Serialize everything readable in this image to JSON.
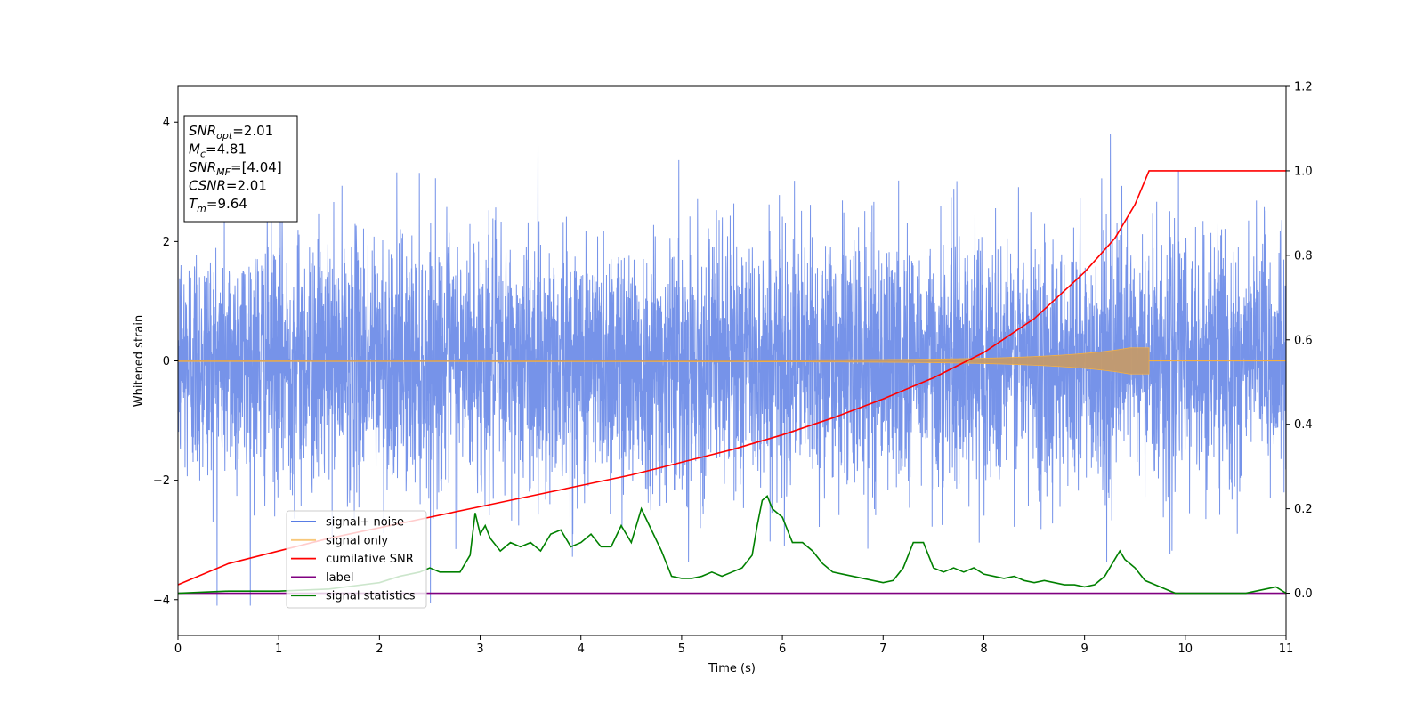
{
  "chart_data": {
    "type": "line",
    "xlabel": "Time (s)",
    "ylabel": "Whitened strain",
    "xlim": [
      0,
      11
    ],
    "ylim": [
      -4.6,
      4.6
    ],
    "y2lim": [
      -0.1,
      1.2
    ],
    "x_ticks": [
      "0",
      "1",
      "2",
      "3",
      "4",
      "5",
      "6",
      "7",
      "8",
      "9",
      "10",
      "11"
    ],
    "y_ticks": [
      "−4",
      "−2",
      "0",
      "2",
      "4"
    ],
    "y_tick_values": [
      -4,
      -2,
      0,
      2,
      4
    ],
    "y2_ticks": [
      "0.0",
      "0.2",
      "0.4",
      "0.6",
      "0.8",
      "1.0",
      "1.2"
    ],
    "y2_tick_values": [
      0.0,
      0.2,
      0.4,
      0.6,
      0.8,
      1.0,
      1.2
    ],
    "grid": false,
    "legend_position": "lower-left",
    "info_box": {
      "position": "top-left",
      "lines": [
        {
          "sym": "SNR",
          "sub": "opt",
          "value": "=2.01"
        },
        {
          "sym": "M",
          "sub": "c",
          "value": "=4.81"
        },
        {
          "sym": "SNR",
          "sub": "MF",
          "value": "=[4.04]"
        },
        {
          "sym": "CSNR",
          "sub": "",
          "value": "=2.01"
        },
        {
          "sym": "T",
          "sub": "m",
          "value": "=9.64"
        }
      ]
    },
    "series": [
      {
        "name": "signal+ noise",
        "axis": "left",
        "color": "#4169e1",
        "description": "dense whitened noise, roughly -2.5 to 2.5 with peaks to about 4.1",
        "noise_std": 1.0,
        "peak_max": 4.15,
        "peak_min": -4.1
      },
      {
        "name": "signal only",
        "axis": "left",
        "color": "#f5b041",
        "chirp": {
          "end_time": 9.64,
          "start_amplitude": 0.01,
          "end_amplitude": 0.22
        }
      },
      {
        "name": "cumilative SNR",
        "axis": "right",
        "color": "#ff0000",
        "x": [
          0,
          0.5,
          1,
          1.5,
          2,
          2.5,
          3,
          3.5,
          4,
          4.5,
          5,
          5.5,
          6,
          6.5,
          7,
          7.5,
          8,
          8.5,
          9,
          9.3,
          9.5,
          9.64,
          11
        ],
        "values": [
          0.02,
          0.07,
          0.1,
          0.13,
          0.155,
          0.18,
          0.205,
          0.23,
          0.255,
          0.28,
          0.31,
          0.34,
          0.375,
          0.415,
          0.46,
          0.51,
          0.57,
          0.65,
          0.76,
          0.84,
          0.92,
          1.0,
          1.0
        ]
      },
      {
        "name": "label",
        "axis": "right",
        "color": "#800080",
        "x": [
          0,
          11
        ],
        "values": [
          0.0,
          0.0
        ]
      },
      {
        "name": "signal statistics",
        "axis": "right",
        "color": "#008000",
        "x": [
          0,
          0.5,
          1,
          1.5,
          2,
          2.2,
          2.4,
          2.5,
          2.6,
          2.8,
          2.9,
          2.95,
          3.0,
          3.05,
          3.1,
          3.2,
          3.3,
          3.4,
          3.5,
          3.6,
          3.7,
          3.8,
          3.9,
          4.0,
          4.1,
          4.2,
          4.3,
          4.4,
          4.5,
          4.6,
          4.7,
          4.8,
          4.9,
          5.0,
          5.1,
          5.2,
          5.3,
          5.4,
          5.5,
          5.6,
          5.7,
          5.75,
          5.8,
          5.85,
          5.9,
          6.0,
          6.1,
          6.2,
          6.3,
          6.4,
          6.5,
          6.6,
          6.7,
          6.8,
          6.9,
          7.0,
          7.1,
          7.2,
          7.3,
          7.4,
          7.5,
          7.6,
          7.7,
          7.8,
          7.9,
          8.0,
          8.1,
          8.2,
          8.3,
          8.4,
          8.5,
          8.6,
          8.7,
          8.8,
          8.9,
          9.0,
          9.1,
          9.2,
          9.3,
          9.35,
          9.4,
          9.5,
          9.6,
          9.7,
          9.8,
          9.9,
          10.0,
          10.2,
          10.4,
          10.6,
          10.8,
          10.9,
          11.0
        ],
        "values": [
          0.0,
          0.005,
          0.005,
          0.01,
          0.025,
          0.04,
          0.05,
          0.06,
          0.05,
          0.05,
          0.09,
          0.19,
          0.14,
          0.16,
          0.13,
          0.1,
          0.12,
          0.11,
          0.12,
          0.1,
          0.14,
          0.15,
          0.11,
          0.12,
          0.14,
          0.11,
          0.11,
          0.16,
          0.12,
          0.2,
          0.15,
          0.1,
          0.04,
          0.035,
          0.035,
          0.04,
          0.05,
          0.04,
          0.05,
          0.06,
          0.09,
          0.16,
          0.22,
          0.23,
          0.2,
          0.18,
          0.12,
          0.12,
          0.1,
          0.07,
          0.05,
          0.045,
          0.04,
          0.035,
          0.03,
          0.025,
          0.03,
          0.06,
          0.12,
          0.12,
          0.06,
          0.05,
          0.06,
          0.05,
          0.06,
          0.045,
          0.04,
          0.035,
          0.04,
          0.03,
          0.025,
          0.03,
          0.025,
          0.02,
          0.02,
          0.015,
          0.02,
          0.04,
          0.08,
          0.1,
          0.08,
          0.06,
          0.03,
          0.02,
          0.01,
          0.0,
          0.0,
          0.0,
          0.0,
          0.0,
          0.01,
          0.015,
          0.0
        ]
      }
    ]
  }
}
